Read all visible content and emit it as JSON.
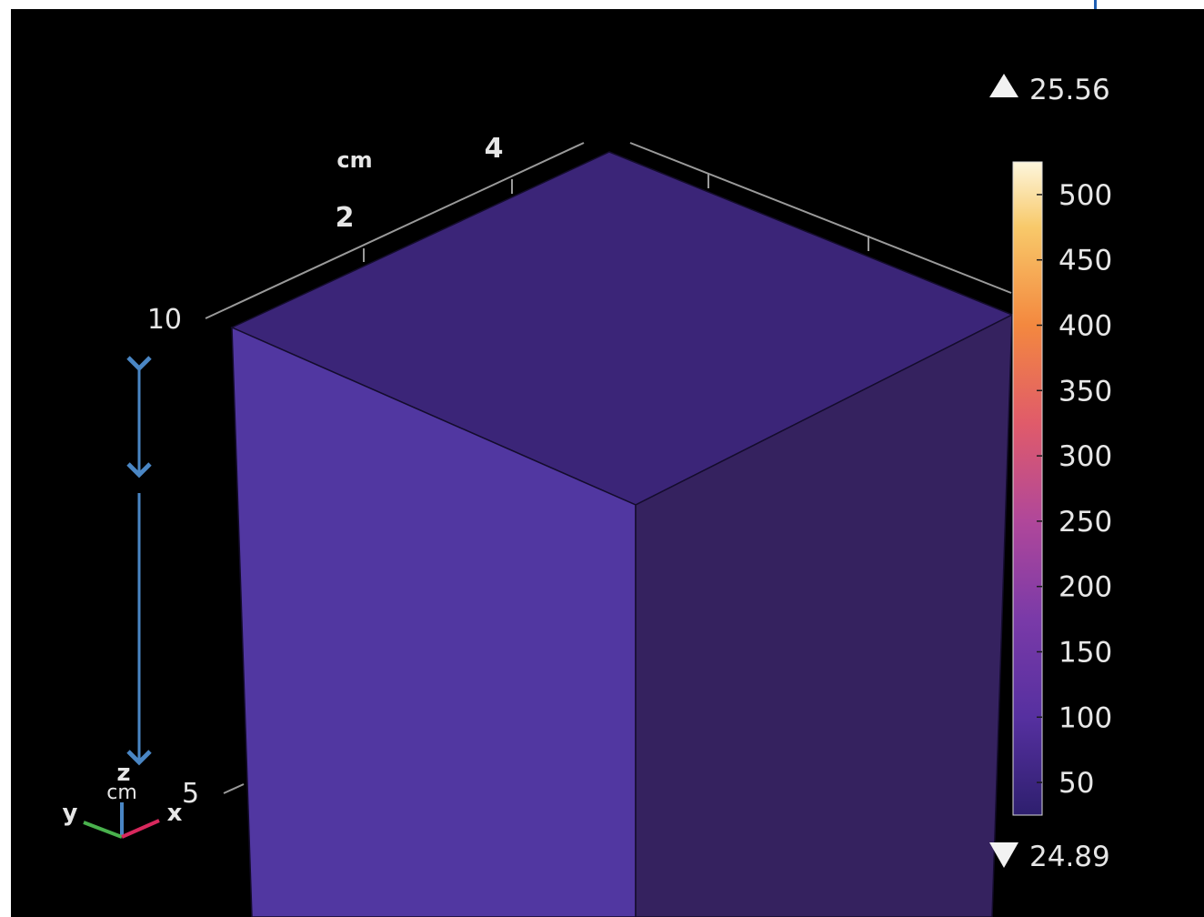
{
  "chart_data": {
    "type": "heatmap",
    "title": "",
    "colormap": "plasma",
    "colorbar": {
      "max_label": "25.56",
      "min_label": "24.89",
      "ticks": [
        "500",
        "450",
        "400",
        "350",
        "300",
        "250",
        "200",
        "150",
        "100",
        "50"
      ],
      "tick_values": [
        500,
        450,
        400,
        350,
        300,
        250,
        200,
        150,
        100,
        50
      ],
      "range": [
        25,
        525
      ],
      "max_arrow_icon": "triangle-up-icon",
      "min_arrow_icon": "triangle-down-icon"
    },
    "axes": {
      "unit_label_top": "cm",
      "unit_label_left": "cm",
      "top_axis_ticks": [
        "2",
        "4"
      ],
      "left_axis_ticks": [
        "10",
        "5"
      ]
    },
    "triad": {
      "x_label": "x",
      "y_label": "y",
      "z_label": "z"
    },
    "surface_colors": {
      "top": "#3b2578",
      "front": "#5137a1",
      "side": "#35225f"
    }
  }
}
